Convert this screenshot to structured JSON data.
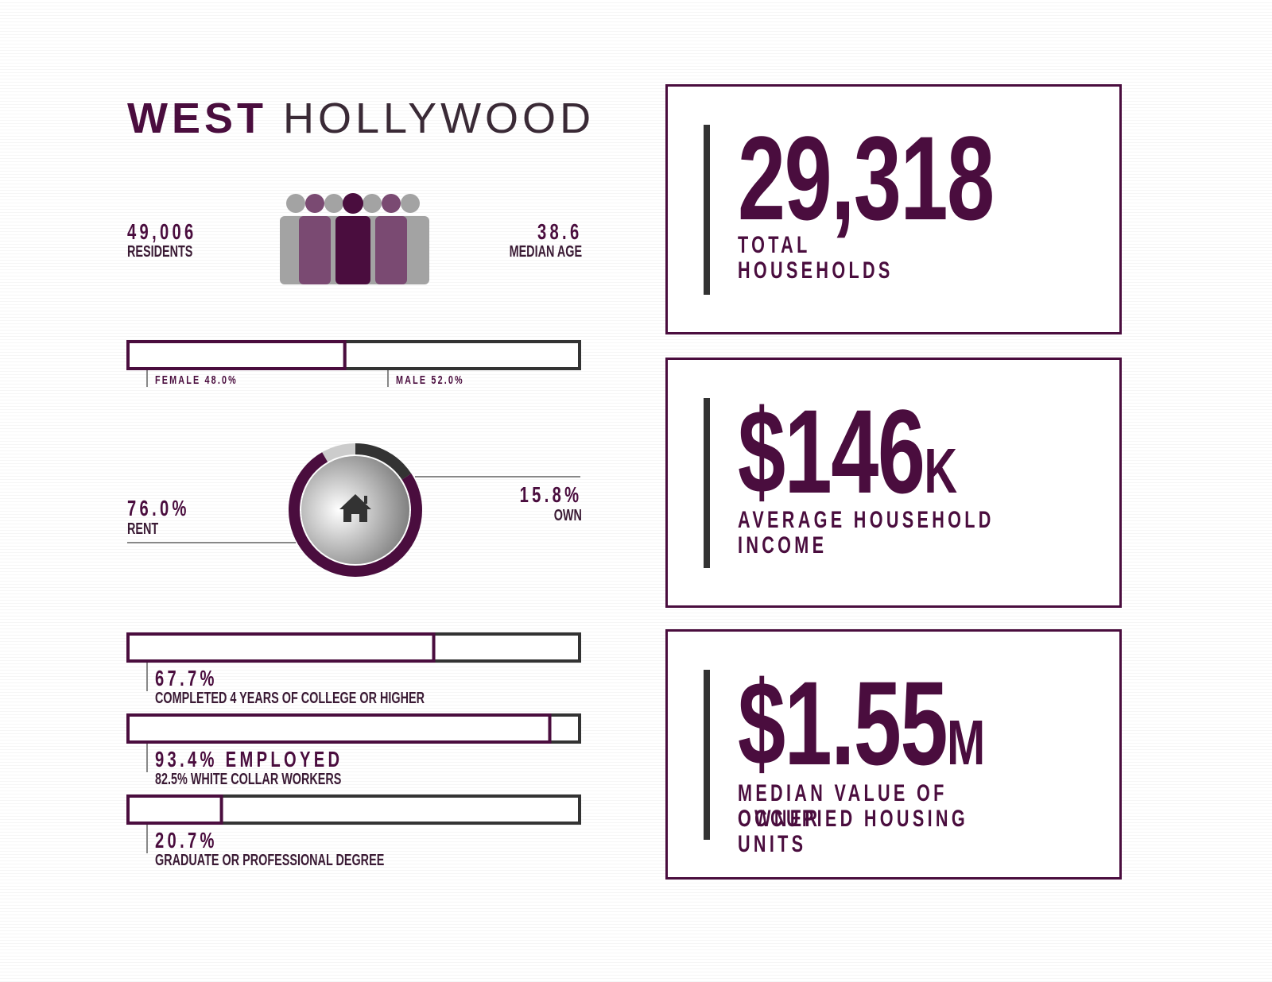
{
  "title": {
    "bold": "WEST",
    "light": "HOLLYWOOD"
  },
  "residents": {
    "value": "49,006",
    "label": "RESIDENTS"
  },
  "median_age": {
    "value": "38.6",
    "label": "MEDIAN AGE"
  },
  "gender": {
    "female": {
      "label": "FEMALE 48.0%",
      "value": 48.0
    },
    "male": {
      "label": "MALE 52.0%",
      "value": 52.0
    }
  },
  "housing": {
    "rent": {
      "value_label": "76.0%",
      "label": "RENT",
      "value": 76.0
    },
    "own": {
      "value_label": "15.8%",
      "label": "OWN",
      "value": 15.8
    }
  },
  "education": [
    {
      "value": 67.7,
      "value_label": "67.7%",
      "label": "COMPLETED 4 YEARS OF COLLEGE OR HIGHER"
    },
    {
      "value": 93.4,
      "value_label": "93.4% EMPLOYED",
      "label": "82.5% WHITE COLLAR WORKERS"
    },
    {
      "value": 20.7,
      "value_label": "20.7%",
      "label": "GRADUATE OR PROFESSIONAL DEGREE"
    }
  ],
  "stats": [
    {
      "value": "29,318",
      "suffix": "",
      "label_lines": [
        "TOTAL",
        "HOUSEHOLDS"
      ]
    },
    {
      "value": "$146",
      "suffix": "K",
      "label_lines": [
        "AVERAGE HOUSEHOLD",
        "INCOME"
      ]
    },
    {
      "value": "$1.55",
      "suffix": "M",
      "label_lines": [
        "MEDIAN VALUE OF OWNER",
        "OCCUPIED HOUSING UNITS"
      ]
    }
  ]
}
